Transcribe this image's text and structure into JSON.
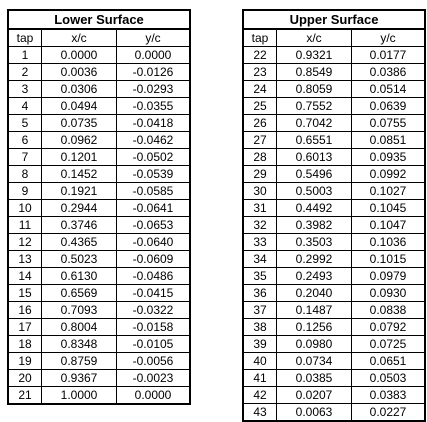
{
  "lower": {
    "title": "Lower Surface",
    "headers": [
      "tap",
      "x/c",
      "y/c"
    ],
    "rows": [
      [
        "1",
        "0.0000",
        "0.0000"
      ],
      [
        "2",
        "0.0036",
        "-0.0126"
      ],
      [
        "3",
        "0.0306",
        "-0.0293"
      ],
      [
        "4",
        "0.0494",
        "-0.0355"
      ],
      [
        "5",
        "0.0735",
        "-0.0418"
      ],
      [
        "6",
        "0.0962",
        "-0.0462"
      ],
      [
        "7",
        "0.1201",
        "-0.0502"
      ],
      [
        "8",
        "0.1452",
        "-0.0539"
      ],
      [
        "9",
        "0.1921",
        "-0.0585"
      ],
      [
        "10",
        "0.2944",
        "-0.0641"
      ],
      [
        "11",
        "0.3746",
        "-0.0653"
      ],
      [
        "12",
        "0.4365",
        "-0.0640"
      ],
      [
        "13",
        "0.5023",
        "-0.0609"
      ],
      [
        "14",
        "0.6130",
        "-0.0486"
      ],
      [
        "15",
        "0.6569",
        "-0.0415"
      ],
      [
        "16",
        "0.7093",
        "-0.0322"
      ],
      [
        "17",
        "0.8004",
        "-0.0158"
      ],
      [
        "18",
        "0.8348",
        "-0.0105"
      ],
      [
        "19",
        "0.8759",
        "-0.0056"
      ],
      [
        "20",
        "0.9367",
        "-0.0023"
      ],
      [
        "21",
        "1.0000",
        "0.0000"
      ]
    ]
  },
  "upper": {
    "title": "Upper Surface",
    "headers": [
      "tap",
      "x/c",
      "y/c"
    ],
    "rows": [
      [
        "22",
        "0.9321",
        "0.0177"
      ],
      [
        "23",
        "0.8549",
        "0.0386"
      ],
      [
        "24",
        "0.8059",
        "0.0514"
      ],
      [
        "25",
        "0.7552",
        "0.0639"
      ],
      [
        "26",
        "0.7042",
        "0.0755"
      ],
      [
        "27",
        "0.6551",
        "0.0851"
      ],
      [
        "28",
        "0.6013",
        "0.0935"
      ],
      [
        "29",
        "0.5496",
        "0.0992"
      ],
      [
        "30",
        "0.5003",
        "0.1027"
      ],
      [
        "31",
        "0.4492",
        "0.1045"
      ],
      [
        "32",
        "0.3982",
        "0.1047"
      ],
      [
        "33",
        "0.3503",
        "0.1036"
      ],
      [
        "34",
        "0.2992",
        "0.1015"
      ],
      [
        "35",
        "0.2493",
        "0.0979"
      ],
      [
        "36",
        "0.2040",
        "0.0930"
      ],
      [
        "37",
        "0.1487",
        "0.0838"
      ],
      [
        "38",
        "0.1256",
        "0.0792"
      ],
      [
        "39",
        "0.0980",
        "0.0725"
      ],
      [
        "40",
        "0.0734",
        "0.0651"
      ],
      [
        "41",
        "0.0385",
        "0.0503"
      ],
      [
        "42",
        "0.0207",
        "0.0383"
      ],
      [
        "43",
        "0.0063",
        "0.0227"
      ]
    ]
  }
}
